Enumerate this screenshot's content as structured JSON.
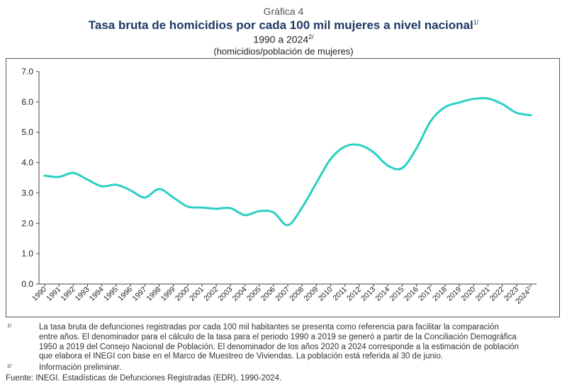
{
  "header": {
    "graph_label": "Gráfica 4",
    "title": "Tasa bruta de homicidios por cada 100 mil mujeres a nivel nacional",
    "title_note": "1/",
    "period": "1990 a 2024",
    "period_note": "2/",
    "units": "(homicidios/población de mujeres)"
  },
  "chart_data": {
    "type": "line",
    "title": "Tasa bruta de homicidios por cada 100 mil mujeres a nivel nacional",
    "xlabel": "",
    "ylabel": "homicidios/población de mujeres",
    "x": [
      "1990",
      "1991",
      "1992",
      "1993",
      "1994",
      "1995",
      "1996",
      "1997",
      "1998",
      "1999",
      "2000",
      "2001",
      "2002",
      "2003",
      "2004",
      "2005",
      "2006",
      "2007",
      "2008",
      "2009",
      "2010",
      "2011",
      "2012",
      "2013",
      "2014",
      "2015",
      "2016",
      "2017",
      "2018",
      "2019",
      "2020",
      "2021",
      "2022",
      "2023",
      "2024"
    ],
    "last_label_note": "2/",
    "series": [
      {
        "name": "Tasa bruta",
        "color": "#2bd0c4",
        "values": [
          3.57,
          3.53,
          3.66,
          3.44,
          3.22,
          3.27,
          3.09,
          2.85,
          3.13,
          2.85,
          2.55,
          2.52,
          2.48,
          2.5,
          2.27,
          2.4,
          2.36,
          1.94,
          2.52,
          3.33,
          4.12,
          4.53,
          4.58,
          4.34,
          3.9,
          3.82,
          4.47,
          5.37,
          5.83,
          5.98,
          6.1,
          6.11,
          5.93,
          5.64,
          5.56
        ]
      }
    ],
    "yticks": [
      "0.0",
      "1.0",
      "2.0",
      "3.0",
      "4.0",
      "5.0",
      "6.0",
      "7.0"
    ],
    "ylim": [
      0,
      7
    ],
    "grid": false
  },
  "footnotes": [
    {
      "mark": "1/",
      "text_lines": [
        "La tasa bruta de defunciones registradas por cada 100 mil habitantes se presenta como referencia para facilitar la comparación",
        "entre años. El denominador para el cálculo de la tasa para el periodo 1990 a 2019 se generó a partir de la Conciliación Demográfica",
        "1950 a 2019 del Consejo Nacional de Población. El denominador de los años 2020 a 2024 corresponde a la estimación de población",
        "que elabora el INEGI con base en el Marco de Muestreo de Viviendas. La población está referida al 30 de junio."
      ]
    },
    {
      "mark": "2/",
      "text_lines": [
        "Información preliminar."
      ]
    }
  ],
  "source": "Fuente: INEGI. Estadísticas de Defunciones Registradas (EDR), 1990-2024."
}
